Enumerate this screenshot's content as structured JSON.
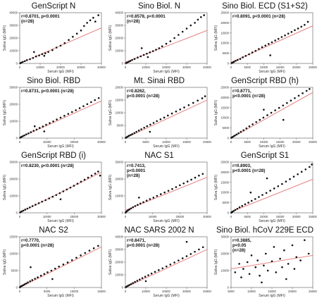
{
  "figure": {
    "x_axis_label": "Serum IgG (MFI)",
    "y_axis_label": "Saliva IgG (MFI)"
  },
  "chart_data": [
    {
      "type": "scatter",
      "title": "GenScript N",
      "stat_lines": [
        "r=0.8701, p<0.0001",
        "(n=28)"
      ],
      "xlabel": "Serum IgG (MFI)",
      "ylabel": "Saliva IgG (MFI)",
      "xlim": [
        0,
        40000
      ],
      "ylim": [
        0,
        40000
      ],
      "xticks": [
        0,
        10000,
        20000,
        30000,
        40000
      ],
      "yticks": [
        0,
        10000,
        20000,
        30000,
        40000
      ],
      "x": [
        300,
        800,
        1500,
        2500,
        3500,
        5000,
        6500,
        8000,
        9500,
        11000,
        12500,
        14000,
        16000,
        18000,
        20000,
        22000,
        24000,
        26000,
        28000,
        30000,
        31500,
        33000,
        34500,
        36000,
        37000,
        38500,
        12000,
        7000
      ],
      "y": [
        200,
        600,
        1200,
        1800,
        2600,
        3300,
        4300,
        5500,
        6300,
        7300,
        8000,
        9000,
        10500,
        12500,
        14000,
        16000,
        18500,
        21000,
        23500,
        26000,
        29500,
        32000,
        34000,
        36000,
        33000,
        38000,
        6000,
        9000
      ],
      "trend": [
        [
          0,
          0
        ],
        [
          40000,
          28000
        ]
      ],
      "trend_color": "#e57373"
    },
    {
      "type": "scatter",
      "title": "Sino Biol. N",
      "stat_lines": [
        "r=0.8578, p<0.0001",
        "(n=28)"
      ],
      "xlabel": "Serum IgG (MFI)",
      "ylabel": "Saliva IgG (MFI)",
      "xlim": [
        0,
        40000
      ],
      "ylim": [
        0,
        40000
      ],
      "xticks": [
        0,
        10000,
        20000,
        30000,
        40000
      ],
      "yticks": [
        0,
        10000,
        20000,
        30000,
        40000
      ],
      "x": [
        300,
        900,
        1600,
        2400,
        3300,
        4500,
        6000,
        7500,
        9000,
        10500,
        12000,
        13500,
        15000,
        16500,
        18000,
        20000,
        22000,
        24000,
        26000,
        28000,
        30000,
        32000,
        34000,
        35500,
        37000,
        38500,
        11000,
        8000
      ],
      "y": [
        300,
        700,
        1300,
        1900,
        2700,
        3500,
        4600,
        5600,
        6700,
        7700,
        8700,
        9700,
        10800,
        12000,
        13500,
        15500,
        17500,
        20000,
        22500,
        25000,
        27500,
        30000,
        32000,
        34500,
        36500,
        38000,
        5000,
        12000
      ],
      "trend": [
        [
          0,
          1000
        ],
        [
          40000,
          26000
        ]
      ],
      "trend_color": "#e57373"
    },
    {
      "type": "scatter",
      "title": "Sino Biol. ECD (S1+S2)",
      "stat_lines": [
        "r=0.8091, p<0.0001 (n=28)"
      ],
      "xlabel": "Serum IgG (MFI)",
      "ylabel": "Saliva IgG (MFI)",
      "xlim": [
        0,
        25000
      ],
      "ylim": [
        0,
        25000
      ],
      "xticks": [
        0,
        5000,
        10000,
        15000,
        20000,
        25000
      ],
      "yticks": [
        0,
        5000,
        10000,
        15000,
        20000,
        25000
      ],
      "x": [
        200,
        500,
        900,
        1400,
        2000,
        2800,
        3600,
        4500,
        5500,
        6500,
        7500,
        8500,
        9500,
        10500,
        11500,
        12500,
        13500,
        14500,
        15500,
        16500,
        17500,
        18500,
        19500,
        20500,
        21500,
        22500,
        23500,
        12000
      ],
      "y": [
        200,
        400,
        800,
        1300,
        1700,
        2200,
        3000,
        3700,
        4500,
        5400,
        6200,
        7100,
        8000,
        8800,
        9600,
        10400,
        11300,
        12100,
        13000,
        13800,
        14700,
        15500,
        16400,
        17200,
        18100,
        19000,
        20500,
        4000
      ],
      "trend": [
        [
          0,
          500
        ],
        [
          25000,
          18500
        ]
      ],
      "trend_color": "#e57373"
    },
    {
      "type": "scatter",
      "title": "Sino Biol. RBD",
      "stat_lines": [
        "r=0.8731, p<0.0001 (n=28)"
      ],
      "xlabel": "Serum IgG (MFI)",
      "ylabel": "Saliva IgG (MFI)",
      "xlim": [
        0,
        30000
      ],
      "ylim": [
        0,
        30000
      ],
      "xticks": [
        0,
        10000,
        20000,
        30000
      ],
      "yticks": [
        0,
        10000,
        20000,
        30000
      ],
      "x": [
        200,
        600,
        1100,
        1700,
        2400,
        3200,
        4100,
        5100,
        6200,
        7300,
        8500,
        9700,
        11000,
        12300,
        13600,
        15000,
        16400,
        17800,
        19200,
        20600,
        22000,
        23400,
        24800,
        26200,
        27600,
        29000,
        9000,
        5500
      ],
      "y": [
        300,
        700,
        1100,
        1600,
        2200,
        2800,
        3500,
        4300,
        5100,
        6000,
        6900,
        7900,
        8900,
        9900,
        11000,
        12100,
        13200,
        14300,
        15400,
        16500,
        17700,
        18900,
        20100,
        21300,
        22500,
        23700,
        4000,
        7000
      ],
      "trend": [
        [
          0,
          200
        ],
        [
          30000,
          22000
        ]
      ],
      "trend_color": "#e57373"
    },
    {
      "type": "scatter",
      "title": "Mt. Sinai RBD",
      "stat_lines": [
        "r=0.8262,",
        "p<0.0001 (n=28)"
      ],
      "xlabel": "Serum IgG (MFI)",
      "ylabel": "Saliva IgG (MFI)",
      "xlim": [
        0,
        20000
      ],
      "ylim": [
        0,
        20000
      ],
      "xticks": [
        0,
        5000,
        10000,
        15000,
        20000
      ],
      "yticks": [
        0,
        5000,
        10000,
        15000,
        20000
      ],
      "x": [
        100,
        300,
        600,
        900,
        1300,
        1700,
        2200,
        2700,
        3300,
        3900,
        4600,
        5300,
        6100,
        6900,
        7700,
        8600,
        9500,
        10400,
        11400,
        12400,
        13400,
        14400,
        15500,
        16600,
        17700,
        18800,
        19500,
        6000
      ],
      "y": [
        150,
        350,
        650,
        950,
        1250,
        1600,
        2000,
        2500,
        3000,
        3500,
        4100,
        4700,
        5300,
        6000,
        6700,
        7400,
        8100,
        8900,
        9700,
        10500,
        11300,
        12100,
        13000,
        13900,
        14800,
        15700,
        16500,
        2500
      ],
      "trend": [
        [
          0,
          0
        ],
        [
          20000,
          15000
        ]
      ],
      "trend_color": "#e57373"
    },
    {
      "type": "scatter",
      "title": "GenScript RBD (h)",
      "stat_lines": [
        "r=0.8771,",
        "p<0.0001 (n=28)"
      ],
      "xlabel": "Serum IgG (MFI)",
      "ylabel": "Saliva IgG (MFI)",
      "xlim": [
        0,
        25000
      ],
      "ylim": [
        0,
        25000
      ],
      "xticks": [
        0,
        5000,
        10000,
        15000,
        20000,
        25000
      ],
      "yticks": [
        0,
        5000,
        10000,
        15000,
        20000,
        25000
      ],
      "x": [
        100,
        400,
        800,
        1200,
        1700,
        2300,
        3000,
        3800,
        4700,
        5600,
        6600,
        7700,
        8800,
        9900,
        11100,
        12300,
        13500,
        14700,
        15900,
        17100,
        18300,
        19500,
        20700,
        21900,
        23100,
        24000,
        10000,
        16000
      ],
      "y": [
        200,
        500,
        900,
        1300,
        1800,
        2400,
        3100,
        3900,
        4800,
        5800,
        6800,
        7900,
        9000,
        10100,
        11300,
        12500,
        13700,
        14900,
        16100,
        17300,
        18500,
        19700,
        20900,
        22100,
        23300,
        24200,
        14000,
        9000
      ],
      "trend": [
        [
          0,
          0
        ],
        [
          25000,
          22500
        ]
      ],
      "trend_color": "#e57373"
    },
    {
      "type": "scatter",
      "title": "GenScript RBD (i)",
      "stat_lines": [
        "r=0.8230, p<0.0001 (n=28)"
      ],
      "xlabel": "Serum IgG (MFI)",
      "ylabel": "Saliva IgG (MFI)",
      "xlim": [
        0,
        30000
      ],
      "ylim": [
        0,
        30000
      ],
      "xticks": [
        0,
        10000,
        20000,
        30000
      ],
      "yticks": [
        0,
        10000,
        20000,
        30000
      ],
      "x": [
        200,
        700,
        1300,
        2000,
        2800,
        3700,
        4700,
        5800,
        7000,
        8200,
        9500,
        10800,
        12100,
        13400,
        14700,
        16000,
        17300,
        18600,
        19900,
        21200,
        22500,
        23800,
        25100,
        26400,
        27700,
        28800,
        29500,
        15000
      ],
      "y": [
        300,
        800,
        1300,
        1900,
        2500,
        3200,
        4000,
        4800,
        5700,
        6600,
        7500,
        8500,
        9500,
        10500,
        11600,
        12700,
        13800,
        14900,
        16000,
        17200,
        18400,
        19600,
        20800,
        22000,
        23200,
        24400,
        22000,
        8000
      ],
      "trend": [
        [
          0,
          0
        ],
        [
          30000,
          24000
        ]
      ],
      "trend_color": "#e57373"
    },
    {
      "type": "scatter",
      "title": "NAC S1",
      "stat_lines": [
        "r=0.7413,",
        "p<0.0001",
        "(n=28)"
      ],
      "xlabel": "Serum IgG (MFI)",
      "ylabel": "Saliva IgG (MFI)",
      "xlim": [
        0,
        30000
      ],
      "ylim": [
        0,
        30000
      ],
      "xticks": [
        0,
        10000,
        20000,
        30000
      ],
      "yticks": [
        0,
        10000,
        20000,
        30000
      ],
      "x": [
        100,
        300,
        600,
        1000,
        1500,
        2100,
        2800,
        3600,
        4500,
        5500,
        6600,
        7800,
        9000,
        10300,
        11600,
        13000,
        14400,
        15800,
        17200,
        18600,
        20000,
        21400,
        22800,
        24200,
        25600,
        27000,
        28400,
        5000
      ],
      "y": [
        200,
        600,
        1000,
        1500,
        2000,
        2600,
        3300,
        4000,
        4700,
        5500,
        6300,
        7200,
        8100,
        9000,
        10000,
        11000,
        12000,
        13000,
        14100,
        15200,
        16300,
        17400,
        18500,
        19600,
        20800,
        22000,
        23000,
        9000
      ],
      "trend": [
        [
          0,
          1500
        ],
        [
          30000,
          21000
        ]
      ],
      "trend_color": "#e57373"
    },
    {
      "type": "scatter",
      "title": "GenScript S1",
      "stat_lines": [
        "r=0.8903,",
        "p<0.0001 (n=28)"
      ],
      "xlabel": "Serum IgG (MFI)",
      "ylabel": "Saliva IgG (MFI)",
      "xlim": [
        0,
        25000
      ],
      "ylim": [
        0,
        25000
      ],
      "xticks": [
        0,
        5000,
        10000,
        15000,
        20000,
        25000
      ],
      "yticks": [
        0,
        5000,
        10000,
        15000,
        20000,
        25000
      ],
      "x": [
        100,
        400,
        800,
        1300,
        1900,
        2600,
        3400,
        4300,
        5300,
        6300,
        7400,
        8500,
        9600,
        10800,
        12000,
        13200,
        14400,
        15600,
        16800,
        18000,
        19200,
        20400,
        21600,
        22800,
        24000,
        24700,
        11000,
        6000
      ],
      "y": [
        100,
        500,
        900,
        1400,
        2000,
        2700,
        3400,
        4200,
        5000,
        5900,
        6800,
        7800,
        8800,
        9800,
        10900,
        12000,
        13100,
        14200,
        15400,
        16600,
        17800,
        19000,
        20200,
        21400,
        22600,
        23800,
        17000,
        10000
      ],
      "trend": [
        [
          0,
          500
        ],
        [
          25000,
          16500
        ]
      ],
      "trend_color": "#e57373"
    },
    {
      "type": "scatter",
      "title": "NAC S2",
      "stat_lines": [
        "r=0.7770,",
        "p<0.0001 (n=28)"
      ],
      "xlabel": "Serum IgG (MFI)",
      "ylabel": "Saliva IgG (MFI)",
      "xlim": [
        0,
        15000
      ],
      "ylim": [
        0,
        15000
      ],
      "xticks": [
        0,
        5000,
        10000,
        15000
      ],
      "yticks": [
        0,
        5000,
        10000,
        15000
      ],
      "x": [
        50,
        200,
        400,
        650,
        900,
        1200,
        1500,
        1900,
        2300,
        2800,
        3300,
        3900,
        4500,
        5100,
        5800,
        6500,
        7200,
        8000,
        8800,
        9600,
        10400,
        11200,
        12000,
        12800,
        13600,
        14400,
        2000,
        6000
      ],
      "y": [
        100,
        300,
        500,
        700,
        950,
        1200,
        1500,
        1850,
        2200,
        2600,
        3000,
        3500,
        4000,
        4500,
        5000,
        5600,
        6200,
        6800,
        7400,
        8100,
        8800,
        9500,
        10200,
        10900,
        11600,
        12300,
        6000,
        2500
      ],
      "trend": [
        [
          0,
          0
        ],
        [
          15000,
          12000
        ]
      ],
      "trend_color": "#e57373"
    },
    {
      "type": "scatter",
      "title": "NAC SARS 2002 N",
      "stat_lines": [
        "r=0.8471,",
        "p<0.0001 (n=28)"
      ],
      "xlabel": "Serum IgG (MFI)",
      "ylabel": "Saliva IgG (MFI)",
      "xlim": [
        0,
        40000
      ],
      "ylim": [
        0,
        40000
      ],
      "xticks": [
        0,
        10000,
        20000,
        30000,
        40000
      ],
      "yticks": [
        0,
        10000,
        20000,
        30000,
        40000
      ],
      "x": [
        200,
        700,
        1300,
        2000,
        2800,
        3700,
        4700,
        5800,
        7000,
        8300,
        9700,
        11200,
        12800,
        14500,
        16300,
        18200,
        20100,
        22000,
        24000,
        26000,
        28000,
        30000,
        32000,
        34000,
        36000,
        38000,
        10000,
        30000
      ],
      "y": [
        300,
        800,
        1400,
        2000,
        2700,
        3500,
        4400,
        5300,
        6300,
        7400,
        8500,
        9700,
        11000,
        12300,
        13700,
        15100,
        16600,
        18100,
        19700,
        21300,
        23000,
        24700,
        26400,
        28200,
        30000,
        31800,
        5000,
        36000
      ],
      "trend": [
        [
          0,
          0
        ],
        [
          40000,
          30000
        ]
      ],
      "trend_color": "#e57373"
    },
    {
      "type": "scatter",
      "title": "Sino Biol. hCoV 229E ECD",
      "stat_lines": [
        "r=0.3885,",
        "p<0.05",
        "(n=28)"
      ],
      "xlabel": "Serum IgG (MFI)",
      "ylabel": "Saliva IgG (MFI)",
      "xlim": [
        5000,
        25000
      ],
      "ylim": [
        0,
        30000
      ],
      "xticks": [
        5000,
        10000,
        15000,
        20000,
        25000
      ],
      "yticks": [
        0,
        10000,
        20000,
        30000
      ],
      "x": [
        6000,
        7000,
        7500,
        8000,
        9000,
        9500,
        10000,
        11000,
        11500,
        12000,
        13000,
        13500,
        14000,
        15000,
        15500,
        16000,
        17000,
        17500,
        18000,
        19000,
        20000,
        20500,
        21000,
        22000,
        23000,
        24000,
        12500,
        18500
      ],
      "y": [
        9000,
        14000,
        6000,
        11000,
        15000,
        8000,
        19000,
        12000,
        16000,
        7000,
        13000,
        20000,
        10000,
        15500,
        24000,
        9000,
        17000,
        12000,
        22000,
        14000,
        25000,
        11000,
        18000,
        16000,
        28000,
        20000,
        3000,
        5000
      ],
      "trend": [
        [
          5000,
          11000
        ],
        [
          25000,
          19000
        ]
      ],
      "trend_color": "#e57373"
    }
  ]
}
